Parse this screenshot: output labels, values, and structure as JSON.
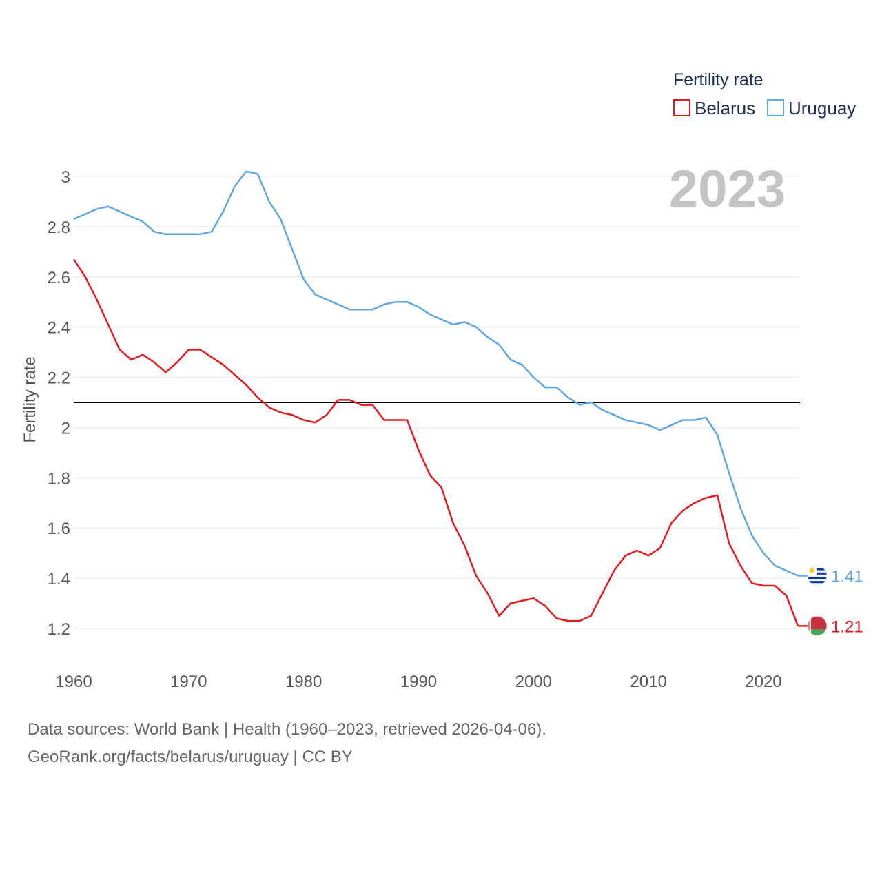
{
  "chart_data": {
    "type": "line",
    "title": "",
    "legend_title": "Fertility rate",
    "legend_position": "top-right",
    "year_label": "2023",
    "xlabel": "",
    "ylabel": "Fertility rate",
    "xlim": [
      1960,
      2023
    ],
    "ylim": [
      1.1,
      3.05
    ],
    "xticks": [
      1960,
      1970,
      1980,
      1990,
      2000,
      2010,
      2020
    ],
    "yticks": [
      1.2,
      1.4,
      1.6,
      1.8,
      2,
      2.2,
      2.4,
      2.6,
      2.8,
      3
    ],
    "ytick_labels": [
      "1.2",
      "1.4",
      "1.6",
      "1.8",
      "2",
      "2.2",
      "2.4",
      "2.6",
      "2.8",
      "3"
    ],
    "reference_line": 2.1,
    "grid": true,
    "x": [
      1960,
      1961,
      1962,
      1963,
      1964,
      1965,
      1966,
      1967,
      1968,
      1969,
      1970,
      1971,
      1972,
      1973,
      1974,
      1975,
      1976,
      1977,
      1978,
      1979,
      1980,
      1981,
      1982,
      1983,
      1984,
      1985,
      1986,
      1987,
      1988,
      1989,
      1990,
      1991,
      1992,
      1993,
      1994,
      1995,
      1996,
      1997,
      1998,
      1999,
      2000,
      2001,
      2002,
      2003,
      2004,
      2005,
      2006,
      2007,
      2008,
      2009,
      2010,
      2011,
      2012,
      2013,
      2014,
      2015,
      2016,
      2017,
      2018,
      2019,
      2020,
      2021,
      2022,
      2023
    ],
    "series": [
      {
        "name": "Belarus",
        "color": "#e41a1c",
        "end_label": "1.21",
        "flag": "belarus-flag-icon",
        "values": [
          2.67,
          2.6,
          2.51,
          2.41,
          2.31,
          2.27,
          2.29,
          2.26,
          2.22,
          2.26,
          2.31,
          2.31,
          2.28,
          2.25,
          2.21,
          2.17,
          2.12,
          2.08,
          2.06,
          2.05,
          2.03,
          2.02,
          2.05,
          2.11,
          2.11,
          2.09,
          2.09,
          2.03,
          2.03,
          2.03,
          1.91,
          1.81,
          1.76,
          1.62,
          1.53,
          1.41,
          1.34,
          1.25,
          1.3,
          1.31,
          1.32,
          1.29,
          1.24,
          1.23,
          1.23,
          1.25,
          1.34,
          1.43,
          1.49,
          1.51,
          1.49,
          1.52,
          1.62,
          1.67,
          1.7,
          1.72,
          1.73,
          1.54,
          1.45,
          1.38,
          1.37,
          1.37,
          1.33,
          1.21
        ]
      },
      {
        "name": "Uruguay",
        "color": "#5ea7e4",
        "end_label": "1.41",
        "flag": "uruguay-flag-icon",
        "values": [
          2.83,
          2.85,
          2.87,
          2.88,
          2.86,
          2.84,
          2.82,
          2.78,
          2.77,
          2.77,
          2.77,
          2.77,
          2.78,
          2.86,
          2.96,
          3.02,
          3.01,
          2.9,
          2.83,
          2.71,
          2.59,
          2.53,
          2.51,
          2.49,
          2.47,
          2.47,
          2.47,
          2.49,
          2.5,
          2.5,
          2.48,
          2.45,
          2.43,
          2.41,
          2.42,
          2.4,
          2.36,
          2.33,
          2.27,
          2.25,
          2.2,
          2.16,
          2.16,
          2.12,
          2.09,
          2.1,
          2.07,
          2.05,
          2.03,
          2.02,
          2.01,
          1.99,
          2.01,
          2.03,
          2.03,
          2.04,
          1.97,
          1.82,
          1.68,
          1.57,
          1.5,
          1.45,
          1.43,
          1.41
        ]
      }
    ]
  },
  "footer": {
    "source_line": "Data sources: World Bank | Health (1960–2023, retrieved 2026-04-06).",
    "credit_line": "GeoRank.org/facts/belarus/uruguay | CC BY"
  }
}
